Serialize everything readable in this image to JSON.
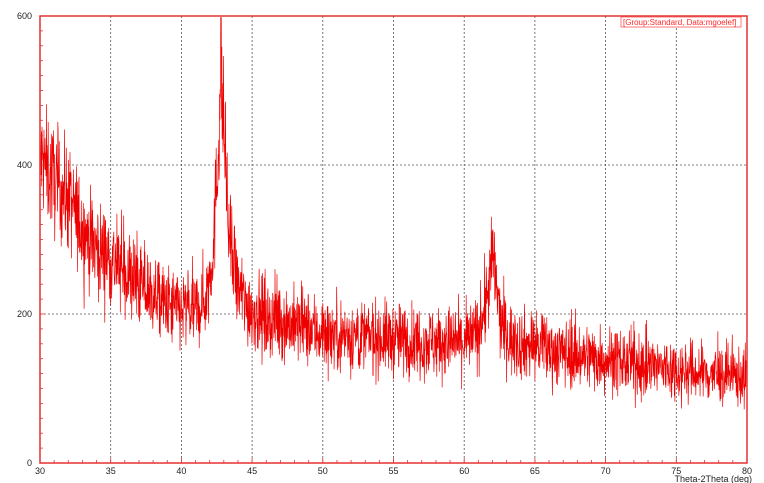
{
  "chart_data": {
    "type": "line",
    "title": "",
    "xlabel": "Theta-2Theta (deg)",
    "ylabel": "",
    "xlim": [
      30,
      80
    ],
    "ylim": [
      0,
      600
    ],
    "x_ticks": [
      30,
      35,
      40,
      45,
      50,
      55,
      60,
      65,
      70,
      75,
      80
    ],
    "y_ticks": [
      0,
      200,
      400,
      600
    ],
    "grid": true,
    "legend_position": "top-right",
    "colors": {
      "series": "#ee0000",
      "frame": "#e53030",
      "grid": "#555555"
    },
    "series": [
      {
        "name": "[Group:Standard, Data:mgoelef]",
        "noise": 38,
        "x": [
          30,
          31,
          32,
          33,
          34,
          35,
          36,
          37,
          38,
          39,
          40,
          41,
          41.8,
          42.3,
          42.6,
          42.8,
          43.0,
          43.3,
          43.8,
          44.5,
          45,
          46,
          47,
          48,
          49,
          50,
          52,
          54,
          56,
          58,
          60,
          61,
          61.5,
          61.8,
          62.0,
          62.2,
          62.5,
          63,
          64,
          65,
          66,
          68,
          70,
          72,
          74,
          76,
          78,
          80
        ],
        "y": [
          410,
          380,
          355,
          315,
          290,
          275,
          255,
          240,
          225,
          210,
          205,
          205,
          225,
          300,
          420,
          525,
          450,
          320,
          245,
          215,
          205,
          195,
          190,
          185,
          180,
          175,
          170,
          168,
          165,
          162,
          162,
          175,
          210,
          245,
          275,
          255,
          195,
          170,
          160,
          158,
          152,
          145,
          140,
          132,
          128,
          122,
          118,
          115
        ]
      }
    ]
  }
}
